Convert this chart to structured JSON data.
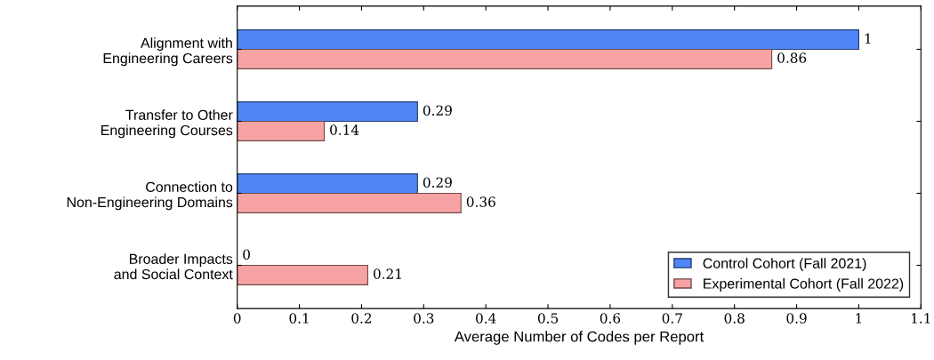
{
  "chart_data": {
    "type": "bar",
    "orientation": "horizontal",
    "xlabel": "Average Number of Codes per Report",
    "categories": [
      "Alignment with\nEngineering Careers",
      "Transfer to Other\nEngineering Courses",
      "Connection to\nNon-Engineering Domains",
      "Broader Impacts\nand Social Context"
    ],
    "series": [
      {
        "name": "Control Cohort (Fall 2021)",
        "color": "#4f86f7",
        "values": [
          1,
          0.29,
          0.29,
          0
        ]
      },
      {
        "name": "Experimental Cohort (Fall 2022)",
        "color": "#f8a3a3",
        "values": [
          0.86,
          0.14,
          0.36,
          0.21
        ]
      }
    ],
    "xlim": [
      0,
      1.1
    ],
    "xticks": [
      0,
      0.1,
      0.2,
      0.3,
      0.4,
      0.5,
      0.6,
      0.7,
      0.8,
      0.9,
      1,
      1.1
    ],
    "data_labels": true,
    "legend": "bottom right",
    "grid": false
  }
}
